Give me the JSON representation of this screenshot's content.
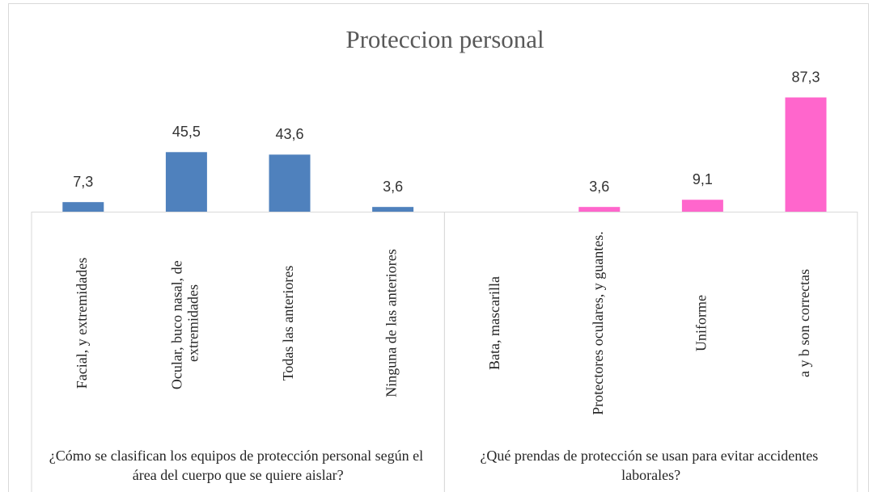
{
  "chart_data": {
    "type": "bar",
    "title": "Proteccion personal",
    "ylim": [
      0,
      100
    ],
    "groups": [
      {
        "label": "¿Cómo se clasifican los equipos de protección personal según el área del cuerpo que se quiere aislar?",
        "categories": [
          "Facial, y extremidades",
          "Ocular, buco nasal, de extremidades",
          "Todas las anteriores",
          "Ninguna de las anteriores"
        ],
        "values": [
          7.3,
          45.5,
          43.6,
          3.6
        ],
        "value_labels": [
          "7,3",
          "45,5",
          "43,6",
          "3,6"
        ],
        "color": "#4f81bd"
      },
      {
        "label": "¿Qué prendas de protección se usan para evitar accidentes laborales?",
        "categories": [
          "Bata, mascarilla",
          "Protectores oculares, y guantes.",
          "Uniforme",
          "a y b son correctas"
        ],
        "values": [
          null,
          3.6,
          9.1,
          87.3
        ],
        "value_labels": [
          null,
          "3,6",
          "9,1",
          "87,3"
        ],
        "color": "#ff66cc"
      }
    ]
  }
}
